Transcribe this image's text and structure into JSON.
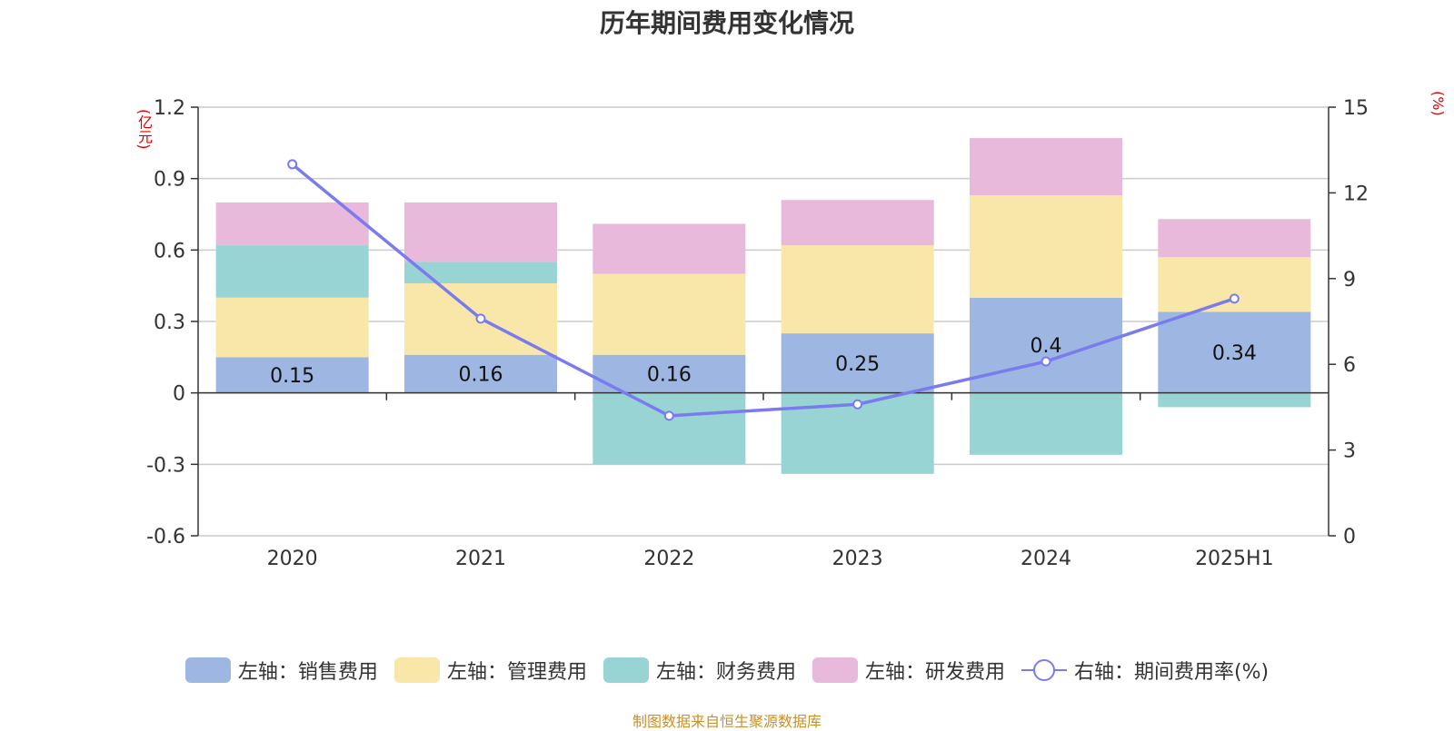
{
  "chart_data": {
    "type": "bar",
    "title": "历年期间费用变化情况",
    "source": "制图数据来自恒生聚源数据库",
    "categories": [
      "2020",
      "2021",
      "2022",
      "2023",
      "2024",
      "2025H1"
    ],
    "left_axis": {
      "unit": "(亿元)",
      "range": [
        -0.6,
        1.2
      ],
      "ticks": [
        "-0.6",
        "-0.3",
        "0",
        "0.3",
        "0.6",
        "0.9",
        "1.2"
      ]
    },
    "right_axis": {
      "unit": "(%)",
      "range": [
        0,
        15
      ],
      "ticks": [
        "0",
        "3",
        "6",
        "9",
        "12",
        "15"
      ]
    },
    "series": [
      {
        "name": "左轴：销售费用",
        "type": "bar",
        "color": "#9db7e2",
        "values": [
          0.15,
          0.16,
          0.16,
          0.25,
          0.4,
          0.34
        ],
        "labels": [
          "0.15",
          "0.16",
          "0.16",
          "0.25",
          "0.4",
          "0.34"
        ]
      },
      {
        "name": "左轴：管理费用",
        "type": "bar",
        "color": "#f9e7a9",
        "values": [
          0.25,
          0.3,
          0.34,
          0.37,
          0.43,
          0.23
        ]
      },
      {
        "name": "左轴：财务费用",
        "type": "bar",
        "color": "#98d4d4",
        "values": [
          0.22,
          0.09,
          -0.3,
          -0.34,
          -0.26,
          -0.06
        ]
      },
      {
        "name": "左轴：研发费用",
        "type": "bar",
        "color": "#e8b9da",
        "values": [
          0.18,
          0.25,
          0.21,
          0.19,
          0.24,
          0.16
        ]
      },
      {
        "name": "右轴：期间费用率(%)",
        "type": "line",
        "color": "#7b7bf0",
        "values": [
          13.0,
          7.6,
          4.2,
          4.6,
          6.1,
          8.3
        ]
      }
    ],
    "grid": true,
    "legend_position": "bottom"
  }
}
